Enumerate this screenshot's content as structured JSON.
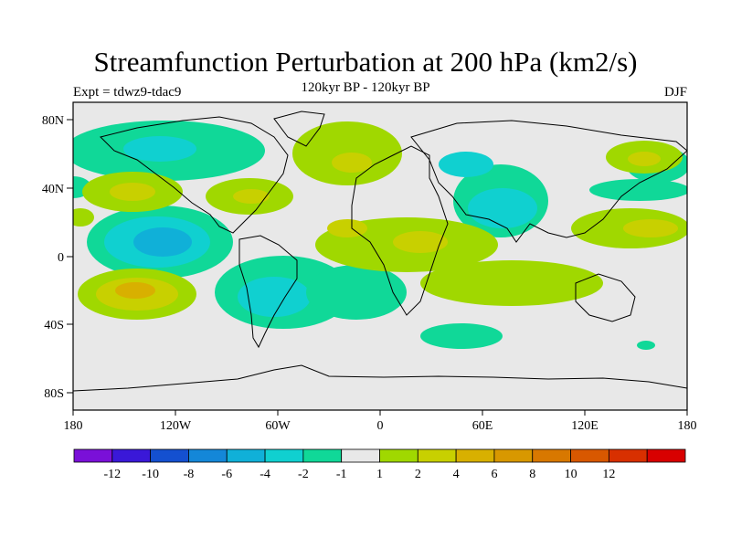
{
  "header": {
    "title": "Streamfunction Perturbation at 200 hPa (km2/s)",
    "subtitle": "120kyr BP - 120kyr BP",
    "left_label": "Expt = tdwz9-tdac9",
    "right_label": "DJF"
  },
  "map": {
    "lat_ticks": [
      "80N",
      "40N",
      "0",
      "40S",
      "80S"
    ],
    "lon_ticks": [
      "180",
      "120W",
      "60W",
      "0",
      "60E",
      "120E",
      "180"
    ],
    "background_color": "#e8e8e8",
    "continents": "coastline outlines"
  },
  "colorbar": {
    "colors": [
      "#7a10d8",
      "#3a18d8",
      "#1450d0",
      "#1487d8",
      "#10b0d8",
      "#10d0d0",
      "#10d898",
      "#e8e8e8",
      "#a0d800",
      "#c8d000",
      "#d8b000",
      "#d89800",
      "#d87800",
      "#d85800",
      "#d83000",
      "#d80000"
    ],
    "labels": [
      "-12",
      "-10",
      "-8",
      "-6",
      "-4",
      "-2",
      "-1",
      "1",
      "2",
      "4",
      "6",
      "8",
      "10",
      "12"
    ]
  }
}
